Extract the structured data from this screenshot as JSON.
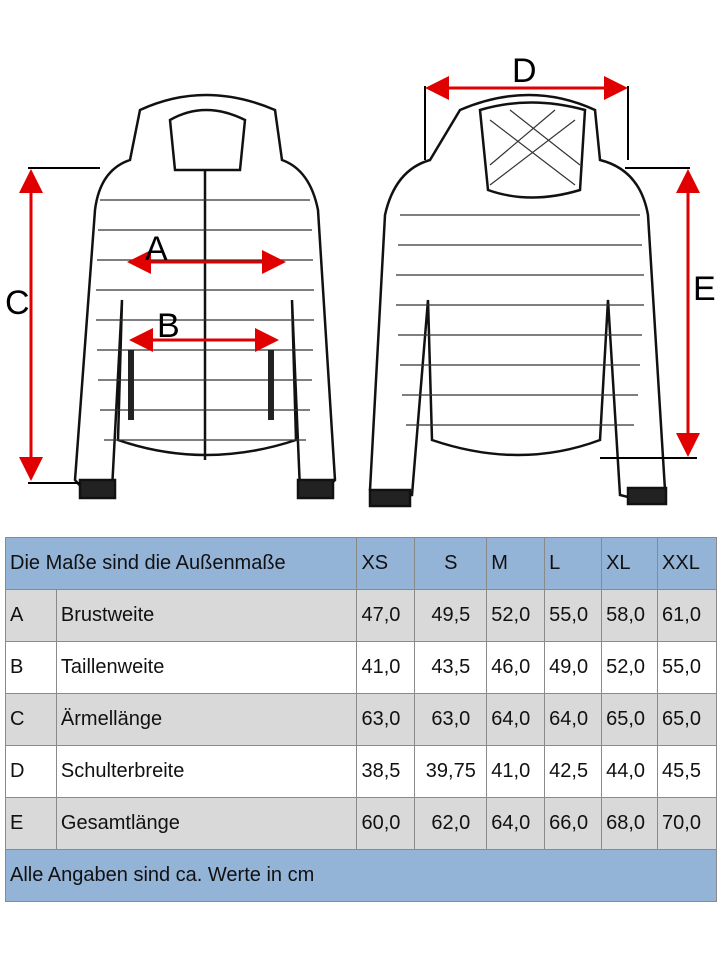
{
  "diagram": {
    "labels": {
      "A": "A",
      "B": "B",
      "C": "C",
      "D": "D",
      "E": "E"
    },
    "arrow_color": "#e00000"
  },
  "table": {
    "header": {
      "title": "Die Maße sind die Außenmaße",
      "sizes": [
        "XS",
        "S",
        "M",
        "L",
        "XL",
        "XXL"
      ]
    },
    "rows": [
      {
        "key": "A",
        "name": "Brustweite",
        "values": [
          "47,0",
          "49,5",
          "52,0",
          "55,0",
          "58,0",
          "61,0"
        ]
      },
      {
        "key": "B",
        "name": "Taillenweite",
        "values": [
          "41,0",
          "43,5",
          "46,0",
          "49,0",
          "52,0",
          "55,0"
        ]
      },
      {
        "key": "C",
        "name": "Ärmellänge",
        "values": [
          "63,0",
          "63,0",
          "64,0",
          "64,0",
          "65,0",
          "65,0"
        ]
      },
      {
        "key": "D",
        "name": "Schulterbreite",
        "values": [
          "38,5",
          "39,75",
          "41,0",
          "42,5",
          "44,0",
          "45,5"
        ]
      },
      {
        "key": "E",
        "name": "Gesamtlänge",
        "values": [
          "60,0",
          "62,0",
          "64,0",
          "66,0",
          "68,0",
          "70,0"
        ]
      }
    ],
    "footer": "Alle Angaben sind ca. Werte in cm",
    "header_color": "#93b3d7",
    "stripe_color": "#d9d9d9"
  }
}
